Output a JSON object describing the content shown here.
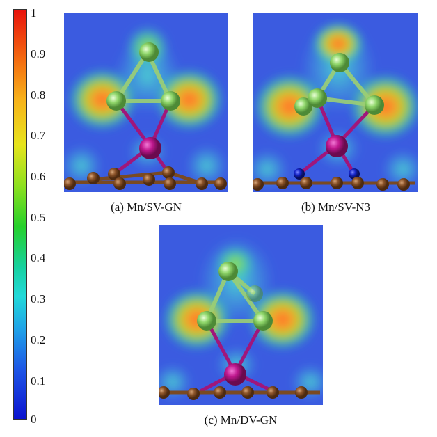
{
  "colorbar": {
    "ticks": [
      "1",
      "0.9",
      "0.8",
      "0.7",
      "0.6",
      "0.5",
      "0.4",
      "0.3",
      "0.2",
      "0.1",
      "0"
    ]
  },
  "panels": [
    {
      "caption": "(a) Mn/SV-GN"
    },
    {
      "caption": "(b) Mn/SV-N3"
    },
    {
      "caption": "(c) Mn/DV-GN"
    }
  ],
  "colors": {
    "background_field": "#3b5be0",
    "carbon": "#7a4a22",
    "manganese": "#c0188f",
    "halogen": "#8fd66a",
    "nitrogen": "#1524c8",
    "hot_spot": "#f2742a"
  }
}
